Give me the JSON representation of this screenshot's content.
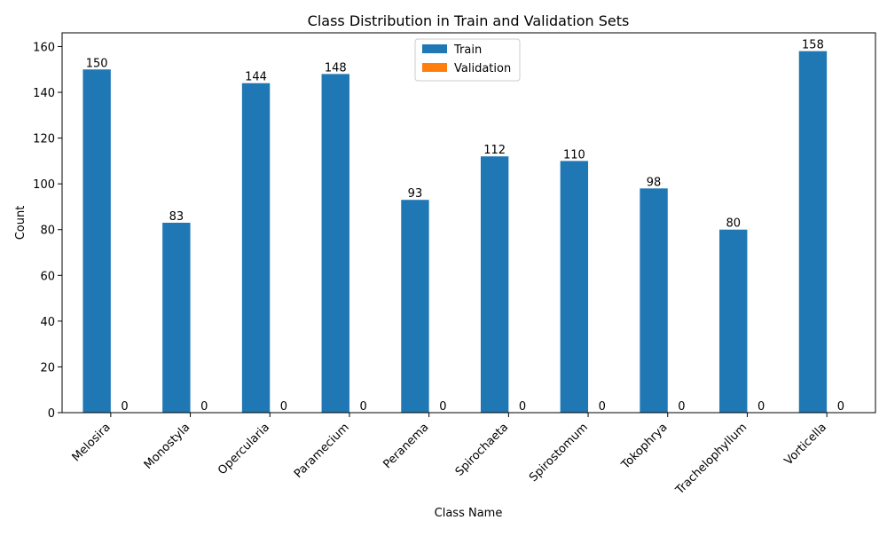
{
  "chart_data": {
    "type": "bar",
    "title": "Class Distribution in Train and Validation Sets",
    "xlabel": "Class Name",
    "ylabel": "Count",
    "categories": [
      "Melosira",
      "Monostyla",
      "Opercularia",
      "Paramecium",
      "Peranema",
      "Spirochaeta",
      "Spirostomum",
      "Tokophrya",
      "Trachelophyllum",
      "Vorticella"
    ],
    "series": [
      {
        "name": "Train",
        "color": "#1f77b4",
        "values": [
          150,
          83,
          144,
          148,
          93,
          112,
          110,
          98,
          80,
          158
        ]
      },
      {
        "name": "Validation",
        "color": "#ff7f0e",
        "values": [
          0,
          0,
          0,
          0,
          0,
          0,
          0,
          0,
          0,
          0
        ]
      }
    ],
    "ylim": [
      0,
      166
    ],
    "yticks": [
      0,
      20,
      40,
      60,
      80,
      100,
      120,
      140,
      160
    ],
    "grid": false,
    "legend_position": "top-center",
    "data_labels": true,
    "xtick_rotation": "45 degrees"
  }
}
